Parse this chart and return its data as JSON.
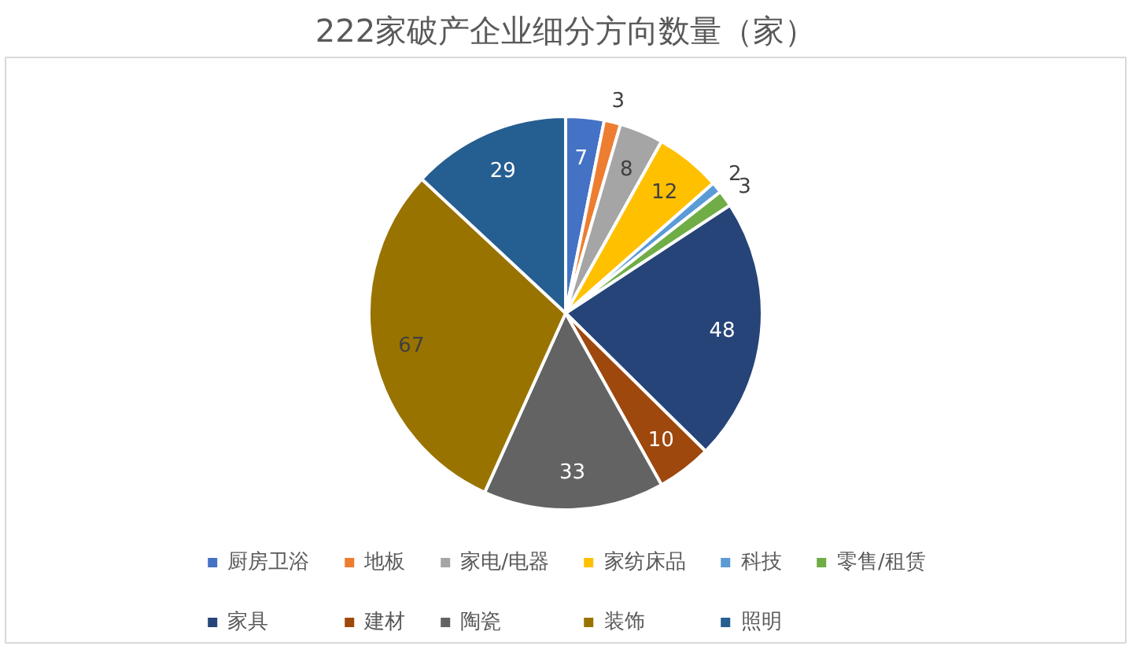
{
  "chart_data": {
    "type": "pie",
    "title": "222家破产企业细分方向数量（家）",
    "categories": [
      "厨房卫浴",
      "地板",
      "家电/电器",
      "家纺床品",
      "科技",
      "零售/租赁",
      "家具",
      "建材",
      "陶瓷",
      "装饰",
      "照明"
    ],
    "values": [
      7,
      3,
      8,
      12,
      2,
      3,
      48,
      10,
      33,
      67,
      29
    ],
    "colors": [
      "#4472c4",
      "#ed7d31",
      "#a5a5a5",
      "#ffc000",
      "#5b9bd5",
      "#70ad47",
      "#264478",
      "#9e480e",
      "#636363",
      "#997300",
      "#255e91"
    ],
    "data_labels": true,
    "legend": "bottom"
  }
}
